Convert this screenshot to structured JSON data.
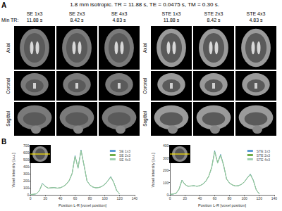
{
  "figure": {
    "panel_a": {
      "label": "A",
      "title": "1.8 mm isotropic. TR = 11.88 s, TE = 0.0475 s, TM = 0.30 s.",
      "min_tr_label": "Min TR:",
      "views": [
        "Axial",
        "Coronal",
        "Sagittal"
      ],
      "groups": [
        {
          "columns": [
            {
              "name": "SE 1x3",
              "min_tr": "11.88 s"
            },
            {
              "name": "SE 2x3",
              "min_tr": "8.42 s"
            },
            {
              "name": "SE 4x3",
              "min_tr": "4.83 s"
            }
          ]
        },
        {
          "columns": [
            {
              "name": "STE 1x3",
              "min_tr": "11.88 s"
            },
            {
              "name": "STE 2x3",
              "min_tr": "8.42 s"
            },
            {
              "name": "STE 4x3",
              "min_tr": "4.83 s"
            }
          ]
        }
      ]
    },
    "panel_b": {
      "label": "B"
    }
  },
  "chart_data": [
    {
      "type": "line",
      "x_label": "Position L-R [voxel position]",
      "y_label": "Voxel intensity [a.u.]",
      "xlim": [
        0,
        140
      ],
      "xticks": [
        0,
        20,
        40,
        60,
        80,
        100,
        120,
        140
      ],
      "ylim": [
        0,
        700
      ],
      "yticks": [
        0,
        100,
        200,
        300,
        400,
        500,
        600,
        700
      ],
      "grid": false,
      "legend": "upper right",
      "x": [
        0,
        4,
        8,
        12,
        16,
        20,
        24,
        28,
        32,
        36,
        40,
        44,
        48,
        52,
        56,
        60,
        64,
        68,
        72,
        76,
        80,
        84,
        88,
        92,
        96,
        100,
        104,
        108,
        112,
        116,
        120
      ],
      "series": [
        {
          "name": "SE 1x3",
          "color": "#5b9bd5",
          "values": [
            5,
            8,
            15,
            60,
            165,
            120,
            95,
            100,
            105,
            95,
            100,
            120,
            150,
            200,
            300,
            560,
            380,
            640,
            420,
            200,
            140,
            110,
            100,
            105,
            120,
            150,
            200,
            260,
            180,
            60,
            10
          ]
        },
        {
          "name": "SE 2x3",
          "color": "#70ad47",
          "values": [
            5,
            9,
            16,
            62,
            160,
            118,
            97,
            102,
            103,
            96,
            102,
            118,
            148,
            205,
            305,
            550,
            385,
            630,
            425,
            198,
            142,
            112,
            101,
            104,
            118,
            152,
            198,
            255,
            178,
            62,
            11
          ]
        },
        {
          "name": "SE 4x3",
          "color": "#9fd0b0",
          "values": [
            6,
            9,
            17,
            58,
            158,
            122,
            96,
            99,
            104,
            97,
            101,
            121,
            152,
            198,
            298,
            545,
            375,
            625,
            418,
            202,
            138,
            109,
            99,
            106,
            121,
            148,
            202,
            250,
            175,
            58,
            12
          ]
        }
      ]
    },
    {
      "type": "line",
      "x_label": "Position L-R [voxel position]",
      "y_label": "Voxel intensity [a.u.]",
      "xlim": [
        0,
        140
      ],
      "xticks": [
        0,
        20,
        40,
        60,
        80,
        100,
        120,
        140
      ],
      "ylim": [
        0,
        400
      ],
      "yticks": [
        0,
        100,
        200,
        300,
        400
      ],
      "grid": false,
      "legend": "upper right",
      "x": [
        0,
        4,
        8,
        12,
        16,
        20,
        24,
        28,
        32,
        36,
        40,
        44,
        48,
        52,
        56,
        60,
        64,
        68,
        72,
        76,
        80,
        84,
        88,
        92,
        96,
        100,
        104,
        108,
        112,
        116,
        120
      ],
      "series": [
        {
          "name": "STE 1x3",
          "color": "#5b9bd5",
          "values": [
            4,
            6,
            12,
            45,
            120,
            85,
            70,
            72,
            75,
            70,
            74,
            88,
            110,
            150,
            220,
            360,
            260,
            330,
            240,
            130,
            95,
            80,
            72,
            75,
            85,
            105,
            140,
            170,
            120,
            40,
            8
          ]
        },
        {
          "name": "STE 2x3",
          "color": "#70ad47",
          "values": [
            4,
            7,
            13,
            47,
            118,
            84,
            71,
            73,
            74,
            71,
            75,
            87,
            112,
            152,
            225,
            352,
            264,
            322,
            244,
            128,
            96,
            81,
            73,
            74,
            86,
            106,
            138,
            166,
            118,
            41,
            9
          ]
        },
        {
          "name": "STE 4x3",
          "color": "#9fd0b0",
          "values": [
            5,
            7,
            13,
            44,
            116,
            86,
            69,
            71,
            76,
            69,
            73,
            89,
            109,
            148,
            218,
            348,
            256,
            318,
            236,
            132,
            94,
            79,
            71,
            76,
            84,
            104,
            141,
            164,
            116,
            39,
            9
          ]
        }
      ]
    }
  ]
}
